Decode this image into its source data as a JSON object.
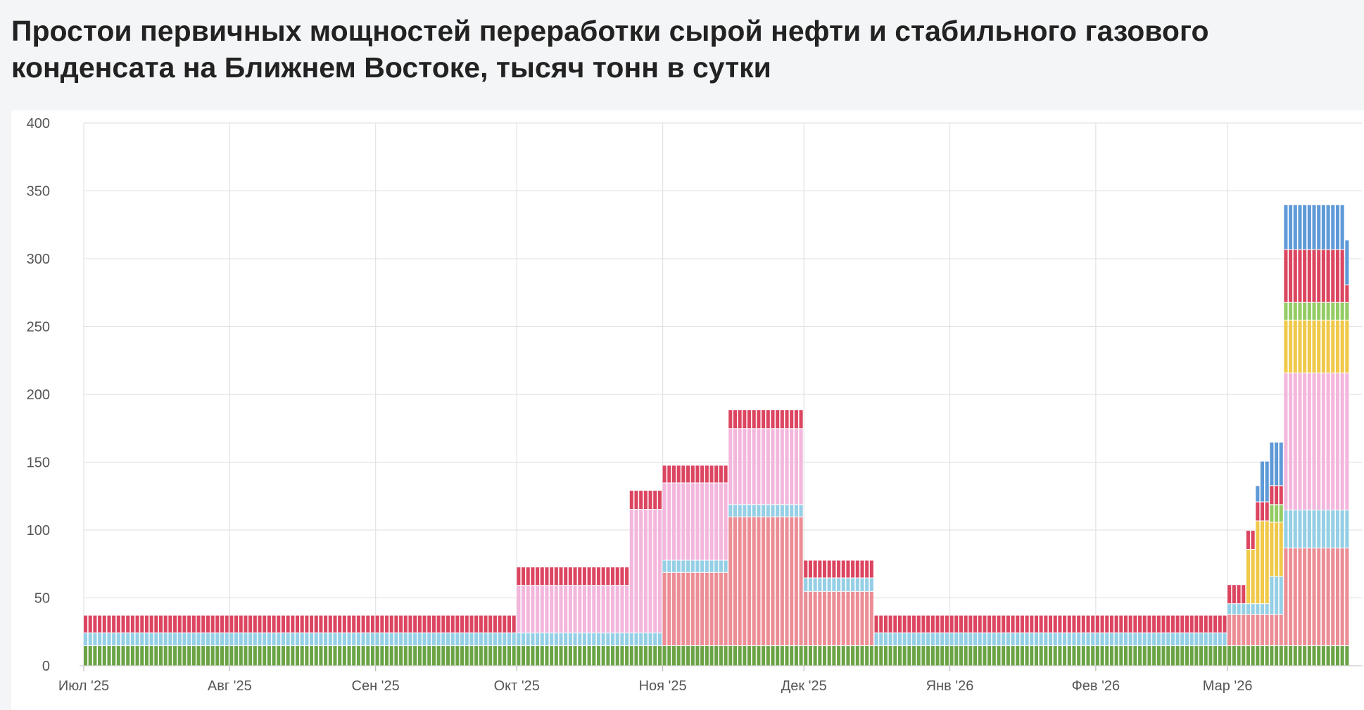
{
  "title": "Простои первичных мощностей переработки сырой нефти и стабильного газового конденсата на Ближнем Востоке, тысяч тонн в сутки",
  "chart_data": {
    "type": "bar",
    "stacked": true,
    "title": "Простои первичных мощностей переработки сырой нефти и стабильного газового конденсата на Ближнем Востоке, тысяч тонн в сутки",
    "xlabel": "",
    "ylabel": "",
    "ylim": [
      0,
      400
    ],
    "yticks": [
      0,
      50,
      100,
      150,
      200,
      250,
      300,
      350,
      400
    ],
    "xlim": [
      "2025-07-01",
      "2026-03-27"
    ],
    "xticks": [
      {
        "date": "2025-07-01",
        "label": "Июл '25"
      },
      {
        "date": "2025-08-01",
        "label": "Авг '25"
      },
      {
        "date": "2025-09-01",
        "label": "Сен '25"
      },
      {
        "date": "2025-10-01",
        "label": "Окт '25"
      },
      {
        "date": "2025-11-01",
        "label": "Ноя '25"
      },
      {
        "date": "2025-12-01",
        "label": "Дек '25"
      },
      {
        "date": "2026-01-01",
        "label": "Янв '26"
      },
      {
        "date": "2026-02-01",
        "label": "Фев '26"
      },
      {
        "date": "2026-03-01",
        "label": "Мар '26"
      }
    ],
    "grid": true,
    "legend": "none",
    "bar_style": "daily bars, one per day",
    "colors": {
      "green": "#6aa344",
      "lightblue": "#94cfe6",
      "salmon": "#ec8d95",
      "pink": "#f3b6dc",
      "yellow": "#f0c94a",
      "lightgreen": "#94cc64",
      "red": "#dc4560",
      "blue": "#5e9ad8"
    },
    "periods": [
      {
        "start": "2025-07-01",
        "end": "2025-09-30",
        "segments": [
          {
            "color": "green",
            "value": 15
          },
          {
            "color": "lightblue",
            "value": 9.5
          },
          {
            "color": "red",
            "value": 13
          }
        ]
      },
      {
        "start": "2025-10-01",
        "end": "2025-10-24",
        "segments": [
          {
            "color": "green",
            "value": 15
          },
          {
            "color": "lightblue",
            "value": 9.5
          },
          {
            "color": "pink",
            "value": 35
          },
          {
            "color": "red",
            "value": 13.5
          }
        ]
      },
      {
        "start": "2025-10-25",
        "end": "2025-10-31",
        "segments": [
          {
            "color": "green",
            "value": 15
          },
          {
            "color": "lightblue",
            "value": 9.5
          },
          {
            "color": "pink",
            "value": 91
          },
          {
            "color": "red",
            "value": 14
          }
        ]
      },
      {
        "start": "2025-11-01",
        "end": "2025-11-14",
        "segments": [
          {
            "color": "green",
            "value": 15
          },
          {
            "color": "salmon",
            "value": 54
          },
          {
            "color": "lightblue",
            "value": 9
          },
          {
            "color": "pink",
            "value": 57
          },
          {
            "color": "red",
            "value": 13
          }
        ]
      },
      {
        "start": "2025-11-15",
        "end": "2025-11-30",
        "segments": [
          {
            "color": "green",
            "value": 15
          },
          {
            "color": "salmon",
            "value": 95
          },
          {
            "color": "lightblue",
            "value": 9
          },
          {
            "color": "pink",
            "value": 56
          },
          {
            "color": "red",
            "value": 14
          }
        ]
      },
      {
        "start": "2025-12-01",
        "end": "2025-12-15",
        "segments": [
          {
            "color": "green",
            "value": 15
          },
          {
            "color": "salmon",
            "value": 40
          },
          {
            "color": "lightblue",
            "value": 10
          },
          {
            "color": "red",
            "value": 13
          }
        ]
      },
      {
        "start": "2025-12-16",
        "end": "2026-02-28",
        "segments": [
          {
            "color": "green",
            "value": 15
          },
          {
            "color": "lightblue",
            "value": 9.5
          },
          {
            "color": "red",
            "value": 13
          }
        ]
      },
      {
        "start": "2026-03-01",
        "end": "2026-03-04",
        "segments": [
          {
            "color": "green",
            "value": 15
          },
          {
            "color": "salmon",
            "value": 23
          },
          {
            "color": "lightblue",
            "value": 8
          },
          {
            "color": "red",
            "value": 14
          }
        ]
      },
      {
        "start": "2026-03-05",
        "end": "2026-03-06",
        "segments": [
          {
            "color": "green",
            "value": 15
          },
          {
            "color": "salmon",
            "value": 23
          },
          {
            "color": "lightblue",
            "value": 8
          },
          {
            "color": "yellow",
            "value": 40
          },
          {
            "color": "red",
            "value": 14
          }
        ]
      },
      {
        "start": "2026-03-07",
        "end": "2026-03-07",
        "segments": [
          {
            "color": "green",
            "value": 15
          },
          {
            "color": "salmon",
            "value": 23
          },
          {
            "color": "lightblue",
            "value": 8
          },
          {
            "color": "yellow",
            "value": 61
          },
          {
            "color": "red",
            "value": 14
          },
          {
            "color": "blue",
            "value": 12
          }
        ]
      },
      {
        "start": "2026-03-08",
        "end": "2026-03-09",
        "segments": [
          {
            "color": "green",
            "value": 15
          },
          {
            "color": "salmon",
            "value": 23
          },
          {
            "color": "lightblue",
            "value": 8
          },
          {
            "color": "yellow",
            "value": 61
          },
          {
            "color": "red",
            "value": 14
          },
          {
            "color": "blue",
            "value": 30
          }
        ]
      },
      {
        "start": "2026-03-10",
        "end": "2026-03-12",
        "segments": [
          {
            "color": "green",
            "value": 15
          },
          {
            "color": "salmon",
            "value": 23
          },
          {
            "color": "lightblue",
            "value": 28
          },
          {
            "color": "yellow",
            "value": 40
          },
          {
            "color": "lightgreen",
            "value": 13
          },
          {
            "color": "red",
            "value": 14
          },
          {
            "color": "blue",
            "value": 32
          }
        ]
      },
      {
        "start": "2026-03-13",
        "end": "2026-03-25",
        "segments": [
          {
            "color": "green",
            "value": 15
          },
          {
            "color": "salmon",
            "value": 72
          },
          {
            "color": "lightblue",
            "value": 28
          },
          {
            "color": "pink",
            "value": 101
          },
          {
            "color": "yellow",
            "value": 39
          },
          {
            "color": "lightgreen",
            "value": 13
          },
          {
            "color": "red",
            "value": 39
          },
          {
            "color": "blue",
            "value": 33
          }
        ]
      },
      {
        "start": "2026-03-26",
        "end": "2026-03-26",
        "segments": [
          {
            "color": "green",
            "value": 15
          },
          {
            "color": "salmon",
            "value": 72
          },
          {
            "color": "lightblue",
            "value": 28
          },
          {
            "color": "pink",
            "value": 101
          },
          {
            "color": "yellow",
            "value": 39
          },
          {
            "color": "lightgreen",
            "value": 13
          },
          {
            "color": "red",
            "value": 13
          },
          {
            "color": "blue",
            "value": 33
          }
        ]
      }
    ]
  }
}
